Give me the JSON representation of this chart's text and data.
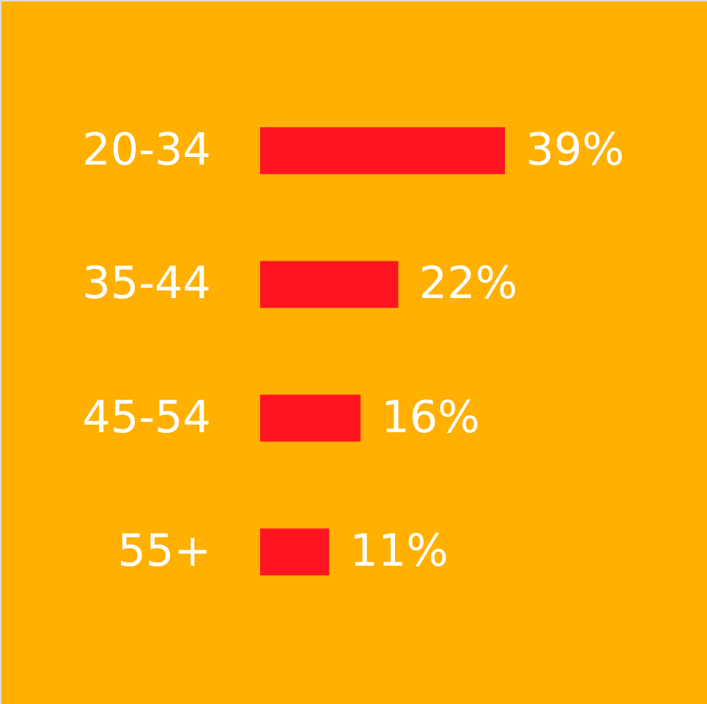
{
  "chart_data": {
    "type": "bar",
    "orientation": "horizontal",
    "categories": [
      "20-34",
      "35-44",
      "45-54",
      "55+"
    ],
    "values": [
      39,
      22,
      16,
      11
    ],
    "value_labels": [
      "39%",
      "22%",
      "16%",
      "11%"
    ],
    "color": "#ff1522"
  }
}
